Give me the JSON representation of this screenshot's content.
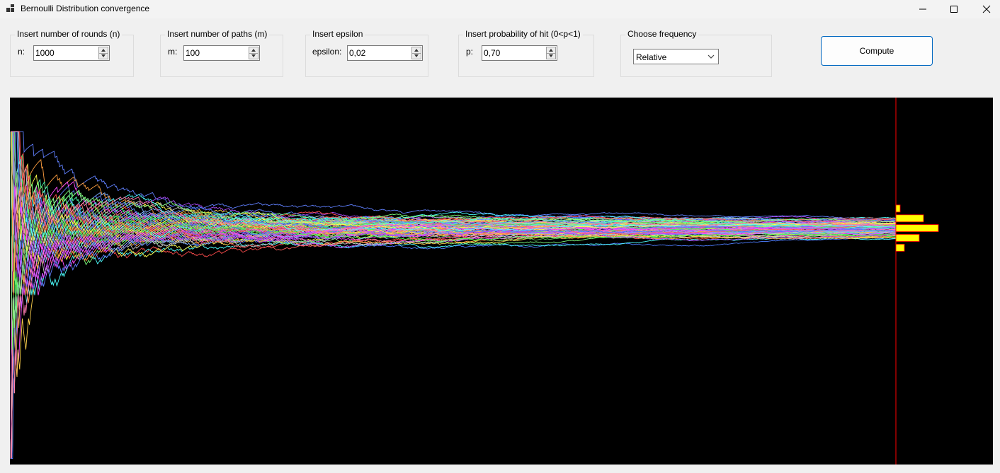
{
  "window": {
    "title": "Bernoulli Distribution convergence",
    "controls": [
      "minimize-icon",
      "maximize-icon",
      "close-icon"
    ]
  },
  "inputs": {
    "rounds": {
      "group_title": "Insert number of rounds (n)",
      "label": "n:",
      "value": "1000"
    },
    "paths": {
      "group_title": "Insert number of paths (m)",
      "label": "m:",
      "value": "100"
    },
    "epsilon": {
      "group_title": "Insert epsilon",
      "label": "epsilon:",
      "value": "0,02"
    },
    "probability": {
      "group_title": "Insert probability of hit (0<p<1)",
      "label": "p:",
      "value": "0,70"
    },
    "frequency": {
      "group_title": "Choose frequency",
      "selected": "Relative"
    }
  },
  "compute_button": {
    "label": "Compute"
  },
  "colors": {
    "plot_background": "#000000",
    "marker_line": "#ff0000",
    "histogram_fill": "#ffff00",
    "histogram_border": "#ff0000",
    "accent": "#0067c0"
  },
  "chart_data": {
    "type": "line",
    "n": 1000,
    "m": 100,
    "p": 0.7,
    "frequency": "relative",
    "y_range": [
      0,
      1
    ],
    "histogram_at_n": {
      "bins": [
        {
          "center": 0.765,
          "count": 4
        },
        {
          "center": 0.735,
          "count": 26
        },
        {
          "center": 0.705,
          "count": 40
        },
        {
          "center": 0.675,
          "count": 22
        },
        {
          "center": 0.645,
          "count": 8
        }
      ]
    }
  }
}
